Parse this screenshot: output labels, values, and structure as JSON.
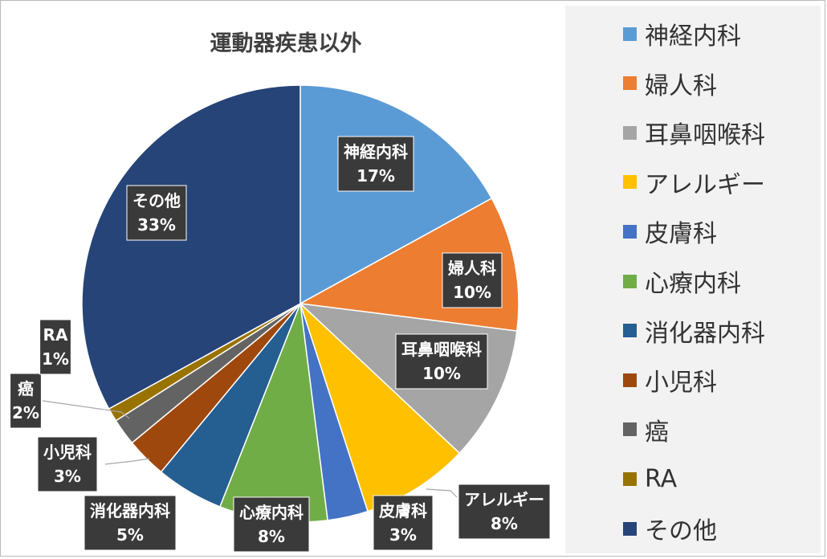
{
  "chart_data": {
    "type": "pie",
    "title": "運動器疾患以外",
    "legend_position": "right",
    "slices": [
      {
        "label": "神経内科",
        "percent": 17,
        "percent_label": "17%",
        "color": "#5b9bd5"
      },
      {
        "label": "婦人科",
        "percent": 10,
        "percent_label": "10%",
        "color": "#ed7d31"
      },
      {
        "label": "耳鼻咽喉科",
        "percent": 10,
        "percent_label": "10%",
        "color": "#a5a5a5"
      },
      {
        "label": "アレルギー",
        "percent": 8,
        "percent_label": "8%",
        "color": "#ffc000"
      },
      {
        "label": "皮膚科",
        "percent": 3,
        "percent_label": "3%",
        "color": "#4472c4"
      },
      {
        "label": "心療内科",
        "percent": 8,
        "percent_label": "8%",
        "color": "#70ad47"
      },
      {
        "label": "消化器内科",
        "percent": 5,
        "percent_label": "5%",
        "color": "#255e91"
      },
      {
        "label": "小児科",
        "percent": 3,
        "percent_label": "3%",
        "color": "#9e480e"
      },
      {
        "label": "癌",
        "percent": 2,
        "percent_label": "2%",
        "color": "#636363"
      },
      {
        "label": "RA",
        "percent": 1,
        "percent_label": "1%",
        "color": "#997300"
      },
      {
        "label": "その他",
        "percent": 33,
        "percent_label": "33%",
        "color": "#264478"
      }
    ]
  }
}
